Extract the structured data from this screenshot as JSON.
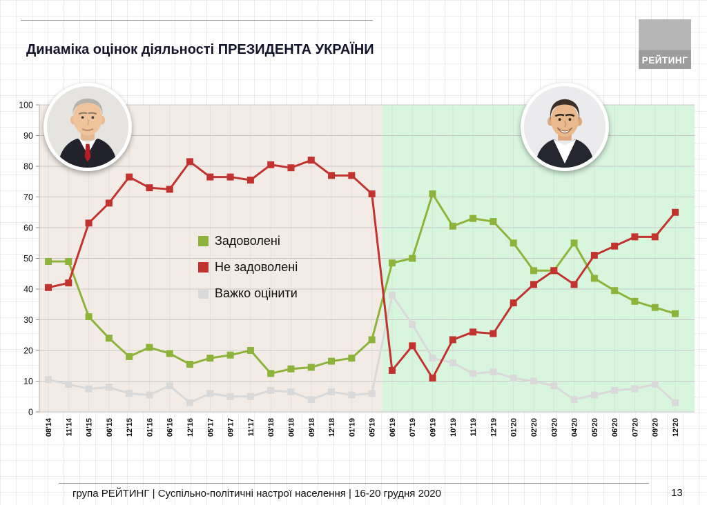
{
  "title": "Динаміка оцінок діяльності ПРЕЗИДЕНТА УКРАЇНИ",
  "logo": {
    "text": "РЕЙТИНГ"
  },
  "footer": {
    "text": "група РЕЙТИНГ | Суспільно-політичні настрої населення | 16-20 грудня 2020",
    "page": "13"
  },
  "chart_data": {
    "type": "line",
    "title": "Динаміка оцінок діяльності ПРЕЗИДЕНТА УКРАЇНИ",
    "categories": [
      "08'14",
      "11'14",
      "04'15",
      "06'15",
      "12'15",
      "01'16",
      "06'16",
      "12'16",
      "05'17",
      "09'17",
      "11'17",
      "03'18",
      "06'18",
      "09'18",
      "12'18",
      "01'19",
      "05'19",
      "06'19",
      "07'19",
      "09'19",
      "10'19",
      "11'19",
      "12'19",
      "01'20",
      "02'20",
      "03'20",
      "04'20",
      "05'20",
      "06'20",
      "07'20",
      "09'20",
      "12'20"
    ],
    "series": [
      {
        "name": "Задоволені",
        "color": "#8db33a",
        "values": [
          49,
          49,
          31,
          24,
          18,
          21,
          19,
          15.5,
          17.5,
          18.5,
          20,
          12.5,
          14,
          14.5,
          16.5,
          17.5,
          23.5,
          48.5,
          50,
          71,
          60.5,
          63,
          62,
          55,
          46,
          46,
          55,
          43.5,
          39.5,
          36,
          34,
          32
        ]
      },
      {
        "name": "Не задоволені",
        "color": "#c23330",
        "values": [
          40.5,
          42,
          61.5,
          68,
          76.5,
          73,
          72.5,
          81.5,
          76.5,
          76.5,
          75.5,
          80.5,
          79.5,
          82,
          77,
          77,
          71,
          13.5,
          21.5,
          11,
          23.5,
          26,
          25.5,
          35.5,
          41.5,
          46,
          41.5,
          51,
          54,
          57,
          57,
          65
        ]
      },
      {
        "name": "Важко оцінити",
        "color": "#d9d9d9",
        "values": [
          10.5,
          9,
          7.5,
          8,
          6,
          5.5,
          8.5,
          3,
          6,
          5,
          5,
          7,
          6.5,
          4,
          6.5,
          5.5,
          6,
          38,
          28.5,
          17.5,
          16,
          12.5,
          13,
          11,
          10,
          8.5,
          4,
          5.5,
          7,
          7.5,
          9,
          3
        ]
      }
    ],
    "ylim": [
      0,
      100
    ],
    "yticks": [
      0,
      10,
      20,
      30,
      40,
      50,
      60,
      70,
      80,
      90,
      100
    ],
    "grid": true,
    "legend_position": "center-left",
    "marker": "square",
    "regions": [
      {
        "from": 0,
        "to": 16,
        "color": "#f3ece6"
      },
      {
        "from": 17,
        "to": 31,
        "color": "#d8f6de"
      }
    ]
  }
}
